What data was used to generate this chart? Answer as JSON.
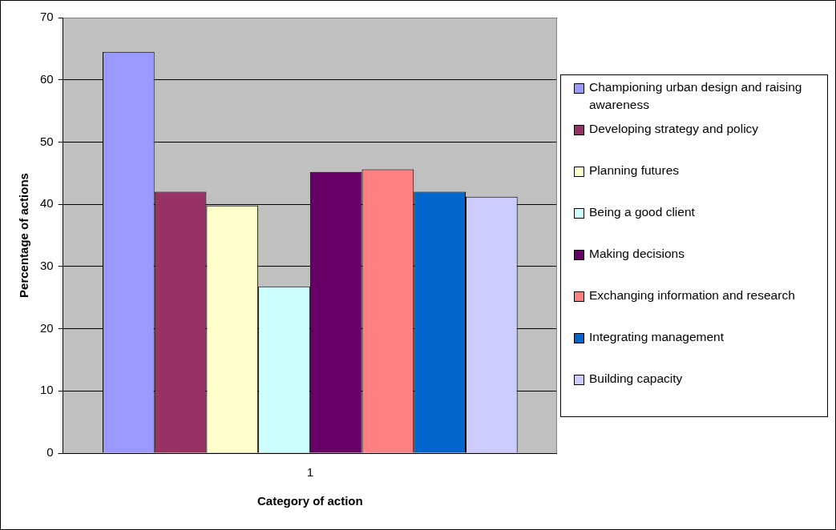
{
  "chart_data": {
    "type": "bar",
    "xlabel": "Category of action",
    "ylabel": "Percentage of actions",
    "categories": [
      "1"
    ],
    "series": [
      {
        "name": "Championing urban design and raising awareness",
        "color": "#9999ff",
        "values": [
          64.5
        ]
      },
      {
        "name": "Developing strategy and policy",
        "color": "#993366",
        "values": [
          42.0
        ]
      },
      {
        "name": "Planning futures",
        "color": "#ffffcc",
        "values": [
          39.8
        ]
      },
      {
        "name": "Being a good client",
        "color": "#ccffff",
        "values": [
          26.8
        ]
      },
      {
        "name": "Making decisions",
        "color": "#660066",
        "values": [
          45.2
        ]
      },
      {
        "name": "Exchanging information and research",
        "color": "#ff8080",
        "values": [
          45.6
        ]
      },
      {
        "name": "Integrating management",
        "color": "#0066cc",
        "values": [
          42.0
        ]
      },
      {
        "name": "Building capacity",
        "color": "#ccccff",
        "values": [
          41.2
        ]
      }
    ],
    "ylim": [
      0,
      70
    ],
    "yticks": [
      0,
      10,
      20,
      30,
      40,
      50,
      60,
      70
    ],
    "grid": "y",
    "legend": "right"
  }
}
